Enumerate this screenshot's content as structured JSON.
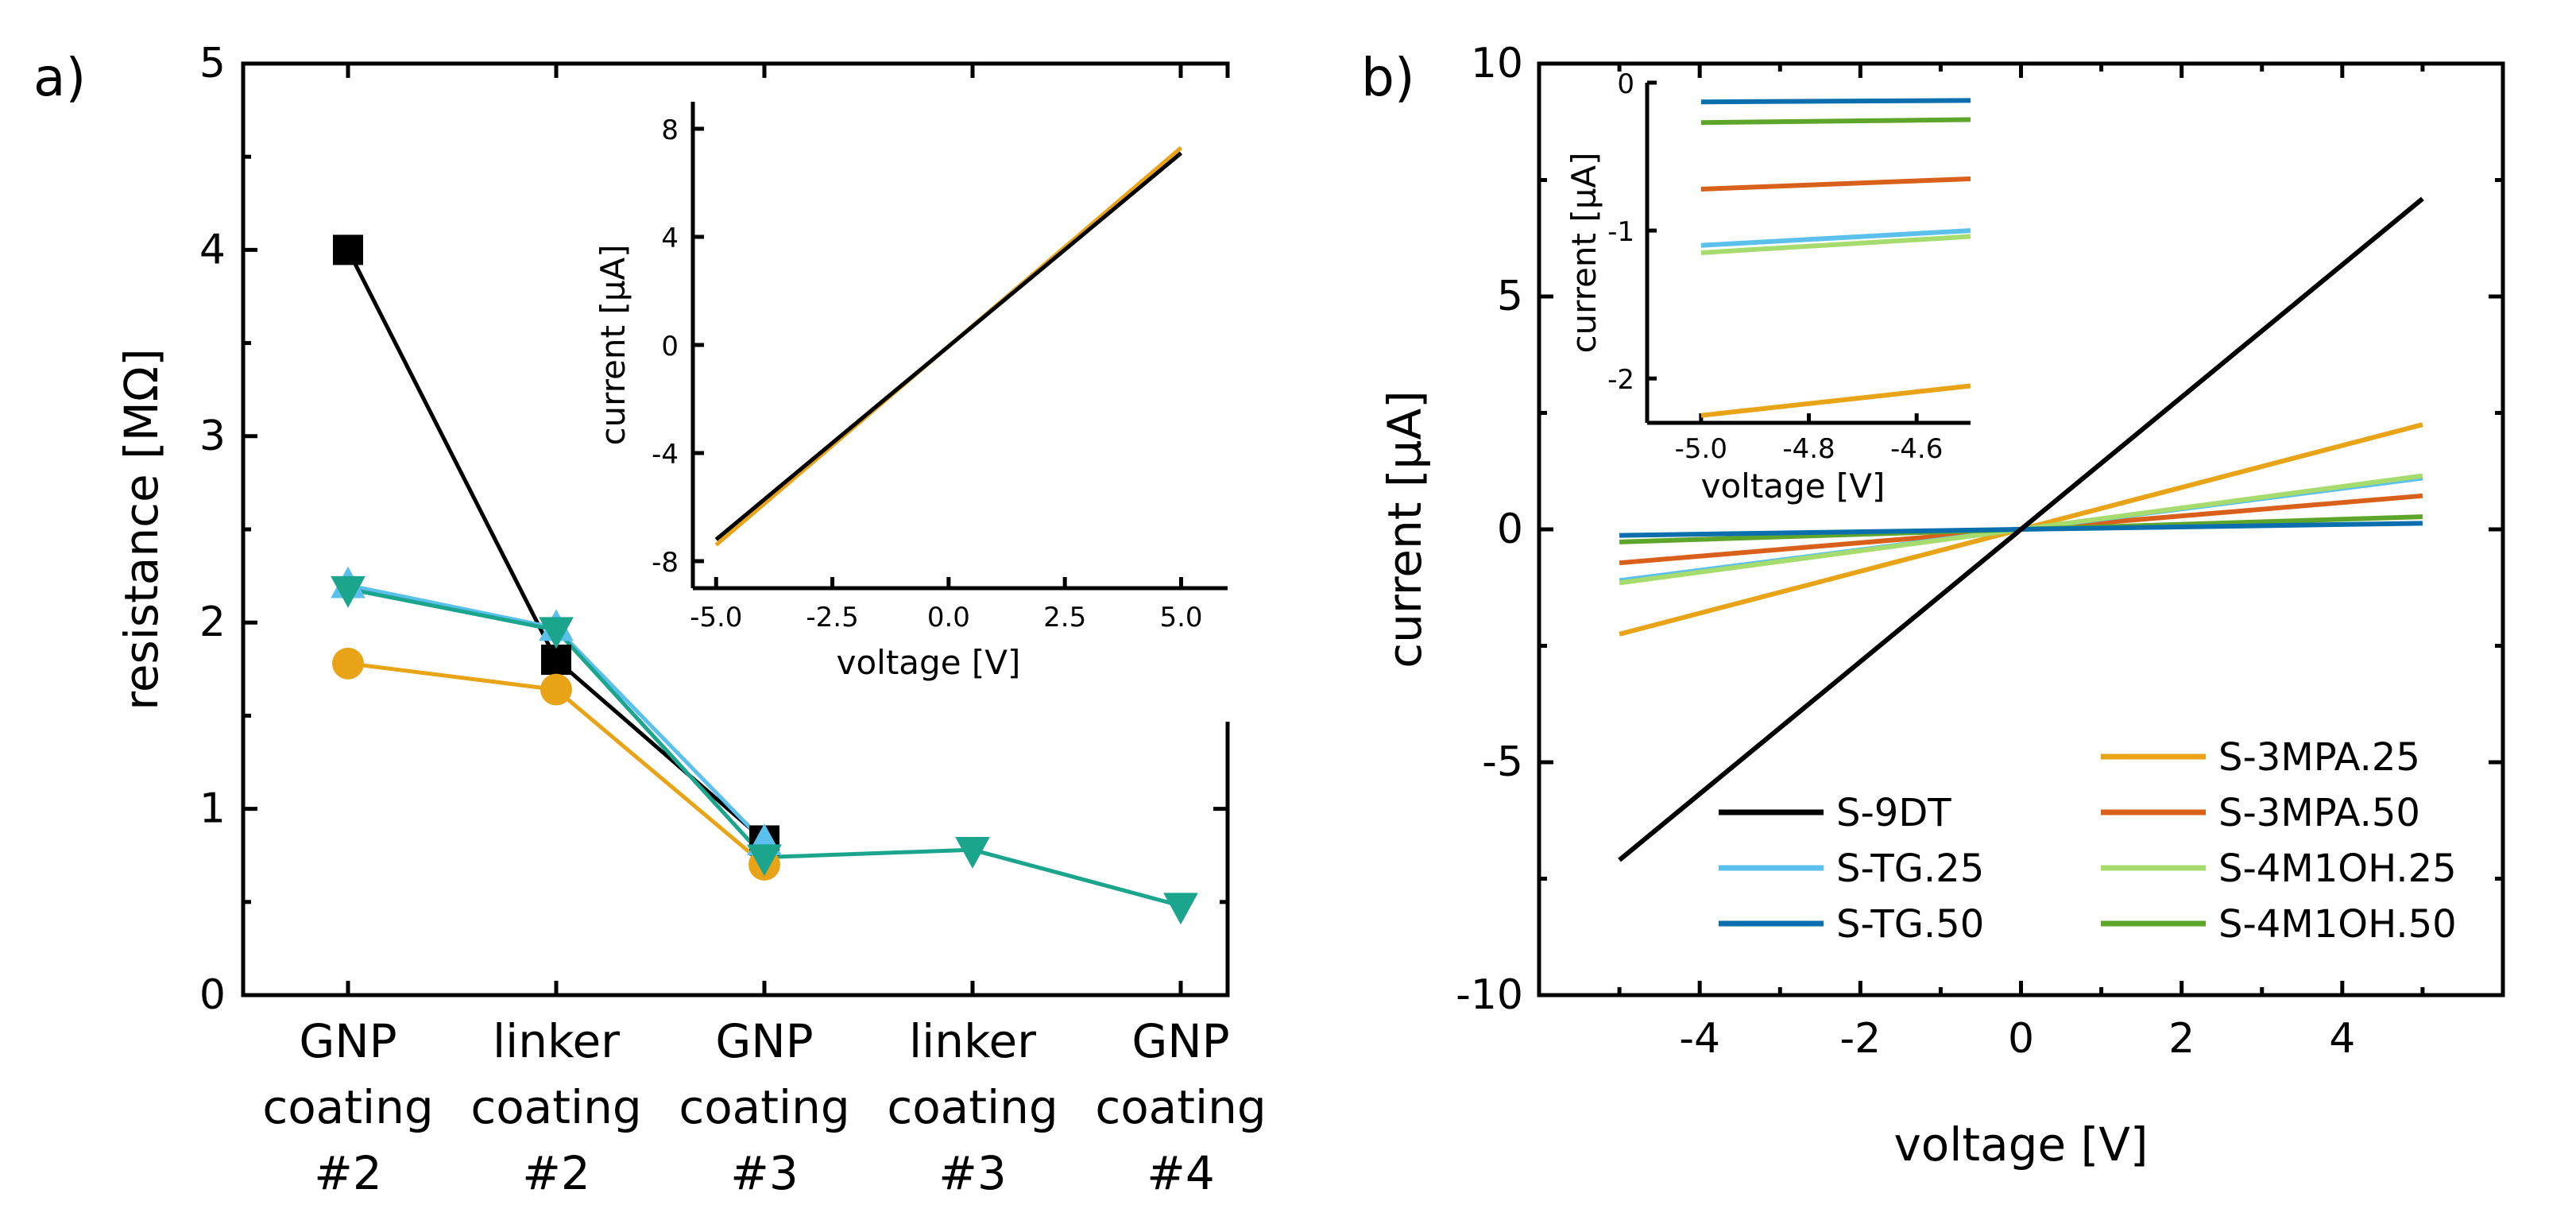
{
  "colors": {
    "black": "#000000",
    "orange": "#E8A317",
    "red_orange": "#D9601A",
    "light_blue": "#5BC0EB",
    "dark_blue": "#0C6FAD",
    "light_green": "#A6DC6E",
    "dark_green": "#5EA62B",
    "teal": "#1AA58C"
  },
  "chart_data": [
    {
      "panel_label": "a)",
      "type": "line",
      "title": "",
      "xlabel": "",
      "ylabel": "resistance [MΩ]",
      "ylim": [
        0,
        5
      ],
      "yticks": [
        "0",
        "1",
        "2",
        "3",
        "4",
        "5"
      ],
      "categories": [
        {
          "line1": "GNP",
          "line2": "coating",
          "line3": "#2"
        },
        {
          "line1": "linker",
          "line2": "coating",
          "line3": "#2"
        },
        {
          "line1": "GNP",
          "line2": "coating",
          "line3": "#3"
        },
        {
          "line1": "linker",
          "line2": "coating",
          "line3": "#3"
        },
        {
          "line1": "GNP",
          "line2": "coating",
          "line3": "#4"
        }
      ],
      "series": [
        {
          "name": "black squares",
          "color": "#000000",
          "marker": "square",
          "values": [
            4.0,
            1.8,
            0.83,
            null,
            null
          ]
        },
        {
          "name": "orange circles",
          "color": "#E8A317",
          "marker": "circle",
          "values": [
            1.78,
            1.64,
            0.7,
            null,
            null
          ]
        },
        {
          "name": "light blue triangles",
          "color": "#5BC0EB",
          "marker": "triangle-up",
          "values": [
            2.2,
            1.97,
            0.82,
            null,
            null
          ]
        },
        {
          "name": "teal triangles",
          "color": "#1AA58C",
          "marker": "triangle-down",
          "values": [
            2.18,
            1.96,
            0.74,
            0.78,
            0.48
          ]
        }
      ],
      "inset": {
        "type": "line",
        "xlabel": "voltage [V]",
        "ylabel": "current [µA]",
        "xlim": [
          -5.5,
          6
        ],
        "ylim": [
          -9,
          9
        ],
        "xticks": [
          "-5.0",
          "-2.5",
          "0.0",
          "2.5",
          "5.0"
        ],
        "yticks": [
          "-8",
          "-4",
          "0",
          "4",
          "8"
        ],
        "series": [
          {
            "name": "orange",
            "color": "#E8A317",
            "x": [
              -5,
              5
            ],
            "y": [
              -7.4,
              7.3
            ]
          },
          {
            "name": "black",
            "color": "#000000",
            "x": [
              -5,
              5
            ],
            "y": [
              -7.2,
              7.1
            ]
          }
        ]
      }
    },
    {
      "panel_label": "b)",
      "type": "line",
      "title": "",
      "xlabel": "voltage [V]",
      "ylabel": "current [µA]",
      "xlim": [
        -6,
        6
      ],
      "ylim": [
        -10,
        10
      ],
      "xticks": [
        "-4",
        "-2",
        "0",
        "2",
        "4"
      ],
      "yticks": [
        "-10",
        "-5",
        "0",
        "5",
        "10"
      ],
      "legend_position": "bottom",
      "series": [
        {
          "name": "S-9DT",
          "color": "#000000",
          "x": [
            -5,
            5
          ],
          "y": [
            -7.1,
            7.1
          ]
        },
        {
          "name": "S-TG.25",
          "color": "#5BC0EB",
          "x": [
            -5,
            5
          ],
          "y": [
            -1.1,
            1.1
          ]
        },
        {
          "name": "S-TG.50",
          "color": "#0C6FAD",
          "x": [
            -5,
            5
          ],
          "y": [
            -0.13,
            0.13
          ]
        },
        {
          "name": "S-3MPA.25",
          "color": "#E8A317",
          "x": [
            -5,
            5
          ],
          "y": [
            -2.25,
            2.25
          ]
        },
        {
          "name": "S-3MPA.50",
          "color": "#D9601A",
          "x": [
            -5,
            5
          ],
          "y": [
            -0.72,
            0.72
          ]
        },
        {
          "name": "S-4M1OH.25",
          "color": "#A6DC6E",
          "x": [
            -5,
            5
          ],
          "y": [
            -1.15,
            1.15
          ]
        },
        {
          "name": "S-4M1OH.50",
          "color": "#5EA62B",
          "x": [
            -5,
            5
          ],
          "y": [
            -0.27,
            0.27
          ]
        }
      ],
      "inset": {
        "type": "line",
        "xlabel": "voltage [V]",
        "ylabel": "current [µA]",
        "xlim": [
          -5.1,
          -4.5
        ],
        "ylim": [
          -2.3,
          0
        ],
        "xticks": [
          "-5.0",
          "-4.8",
          "-4.6"
        ],
        "yticks": [
          "0",
          "-1",
          "-2"
        ],
        "series": [
          {
            "name": "S-TG.50",
            "color": "#0C6FAD",
            "x": [
              -5.0,
              -4.5
            ],
            "y": [
              -0.13,
              -0.12
            ]
          },
          {
            "name": "S-4M1OH.50",
            "color": "#5EA62B",
            "x": [
              -5.0,
              -4.5
            ],
            "y": [
              -0.27,
              -0.25
            ]
          },
          {
            "name": "S-3MPA.50",
            "color": "#D9601A",
            "x": [
              -5.0,
              -4.5
            ],
            "y": [
              -0.72,
              -0.65
            ]
          },
          {
            "name": "S-TG.25",
            "color": "#5BC0EB",
            "x": [
              -5.0,
              -4.5
            ],
            "y": [
              -1.1,
              -1.0
            ]
          },
          {
            "name": "S-4M1OH.25",
            "color": "#A6DC6E",
            "x": [
              -5.0,
              -4.5
            ],
            "y": [
              -1.15,
              -1.04
            ]
          },
          {
            "name": "S-3MPA.25",
            "color": "#E8A317",
            "x": [
              -5.0,
              -4.5
            ],
            "y": [
              -2.25,
              -2.05
            ]
          }
        ]
      }
    }
  ]
}
